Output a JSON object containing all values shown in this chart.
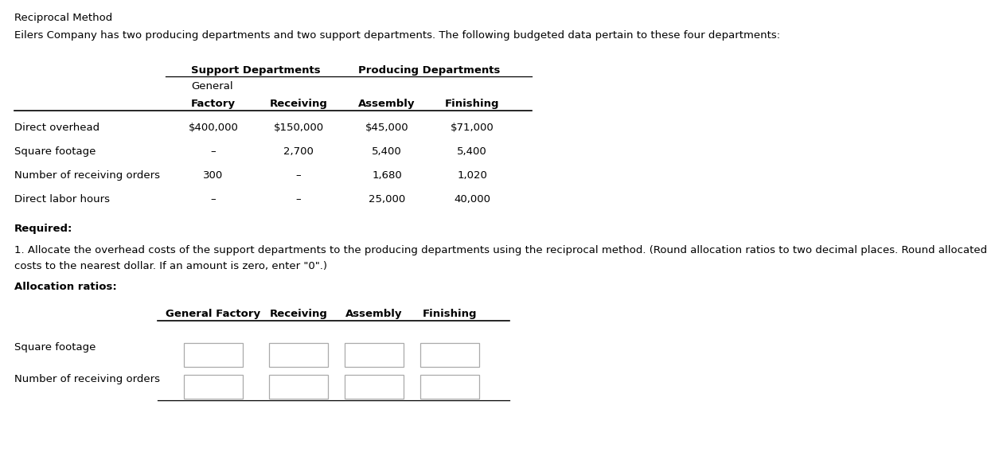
{
  "title": "Reciprocal Method",
  "intro_text": "Eilers Company has two producing departments and two support departments. The following budgeted data pertain to these four departments:",
  "support_header": "Support Departments",
  "producing_header": "Producing Departments",
  "col_headers_row1_label": "General",
  "col_headers_row2": [
    "Factory",
    "Receiving",
    "Assembly",
    "Finishing"
  ],
  "row_labels": [
    "Direct overhead",
    "Square footage",
    "Number of receiving orders",
    "Direct labor hours"
  ],
  "table_data": [
    [
      "$400,000",
      "$150,000",
      "$45,000",
      "$71,000"
    ],
    [
      "–",
      "2,700",
      "5,400",
      "5,400"
    ],
    [
      "300",
      "–",
      "1,680",
      "1,020"
    ],
    [
      "–",
      "–",
      "25,000",
      "40,000"
    ]
  ],
  "required_text": "Required:",
  "instruction_line1": "1. Allocate the overhead costs of the support departments to the producing departments using the reciprocal method. (Round allocation ratios to two decimal places. Round allocated",
  "instruction_line2": "costs to the nearest dollar. If an amount is zero, enter \"0\".)",
  "allocation_header": "Allocation ratios:",
  "alloc_col_headers": [
    "General Factory",
    "Receiving",
    "Assembly",
    "Finishing"
  ],
  "alloc_row_labels": [
    "Square footage",
    "Number of receiving orders"
  ],
  "bg_color": "#ffffff",
  "text_color": "#000000",
  "font_size": 9.5
}
